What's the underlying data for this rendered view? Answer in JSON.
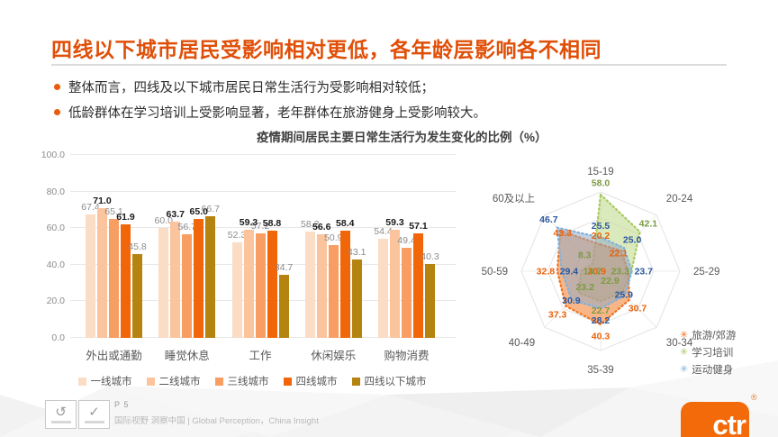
{
  "header": {
    "title": "四线以下城市居民受影响相对更低，各年龄层影响各不相同",
    "bullets": [
      "整体而言，四线及以下城市居民日常生活行为受影响相对较低；",
      "低龄群体在学习培训上受影响显著，老年群体在旅游健身上受影响较大。"
    ]
  },
  "chart_title": "疫情期间居民主要日常生活行为发生变化的比例（%）",
  "chart_data": [
    {
      "type": "bar",
      "title": "疫情期间居民主要日常生活行为发生变化的比例（%）",
      "categories": [
        "外出或通勤",
        "睡觉休息",
        "工作",
        "休闲娱乐",
        "购物消费"
      ],
      "ylim": [
        0,
        100
      ],
      "yticks": [
        "0.0",
        "20.0",
        "40.0",
        "60.0",
        "80.0",
        "100.0"
      ],
      "grid": true,
      "legend_position": "bottom",
      "series": [
        {
          "name": "一线城市",
          "color": "#fbdcc4",
          "label_color": "#8c8c8c",
          "bold_labels": false,
          "values": [
            67.4,
            60.0,
            52.3,
            58.2,
            54.4
          ]
        },
        {
          "name": "二线城市",
          "color": "#fbc49c",
          "label_color": "#1a1a1a",
          "bold_labels": true,
          "values": [
            71.0,
            63.7,
            59.3,
            56.6,
            59.3
          ]
        },
        {
          "name": "三线城市",
          "color": "#f99e62",
          "label_color": "#8c8c8c",
          "bold_labels": false,
          "values": [
            65.1,
            56.7,
            57.2,
            50.9,
            49.4
          ]
        },
        {
          "name": "四线城市",
          "color": "#f2660a",
          "label_color": "#1a1a1a",
          "bold_labels": true,
          "values": [
            61.9,
            65.0,
            58.8,
            58.4,
            57.1
          ]
        },
        {
          "name": "四线以下城市",
          "color": "#b5830f",
          "label_color": "#8c8c8c",
          "bold_labels": false,
          "values": [
            45.8,
            66.7,
            34.7,
            43.1,
            40.3
          ]
        }
      ]
    },
    {
      "type": "radar",
      "axes": [
        "15-19",
        "20-24",
        "25-29",
        "30-34",
        "35-39",
        "40-49",
        "50-59",
        "60及以上"
      ],
      "max": 60,
      "rings": [
        20,
        40,
        60
      ],
      "legend_marker": "✳",
      "legend_position": "right-bottom",
      "series": [
        {
          "name": "旅游/郊游",
          "color": "#f0741f",
          "fill": "rgba(243,122,38,0.55)",
          "label_color": "#e8620c",
          "values": [
            20.2,
            22.1,
            20.9,
            30.7,
            40.3,
            37.3,
            32.8,
            43.3
          ]
        },
        {
          "name": "学习培训",
          "color": "#a9c961",
          "fill": "rgba(199,222,154,0.65)",
          "label_color": "#7b9b43",
          "values": [
            58.0,
            42.1,
            23.3,
            22.9,
            22.7,
            23.2,
            14.7,
            8.3
          ]
        },
        {
          "name": "运动健身",
          "color": "#7fb2de",
          "fill": "rgba(148,170,196,0.55)",
          "label_color": "#2b579e",
          "values": [
            25.5,
            25.0,
            23.7,
            25.9,
            28.2,
            30.9,
            29.4,
            46.7
          ]
        }
      ]
    }
  ],
  "footer": {
    "page": "P 5",
    "tagline": "国际视野 洞察中国 |  Global Perception，China Insight",
    "cert_glyphs": [
      "↺",
      "✓"
    ],
    "brand": "ctr",
    "brand_reg": "®"
  },
  "colors": {
    "accent": "#eb5c0a",
    "title": "#e04f08"
  }
}
